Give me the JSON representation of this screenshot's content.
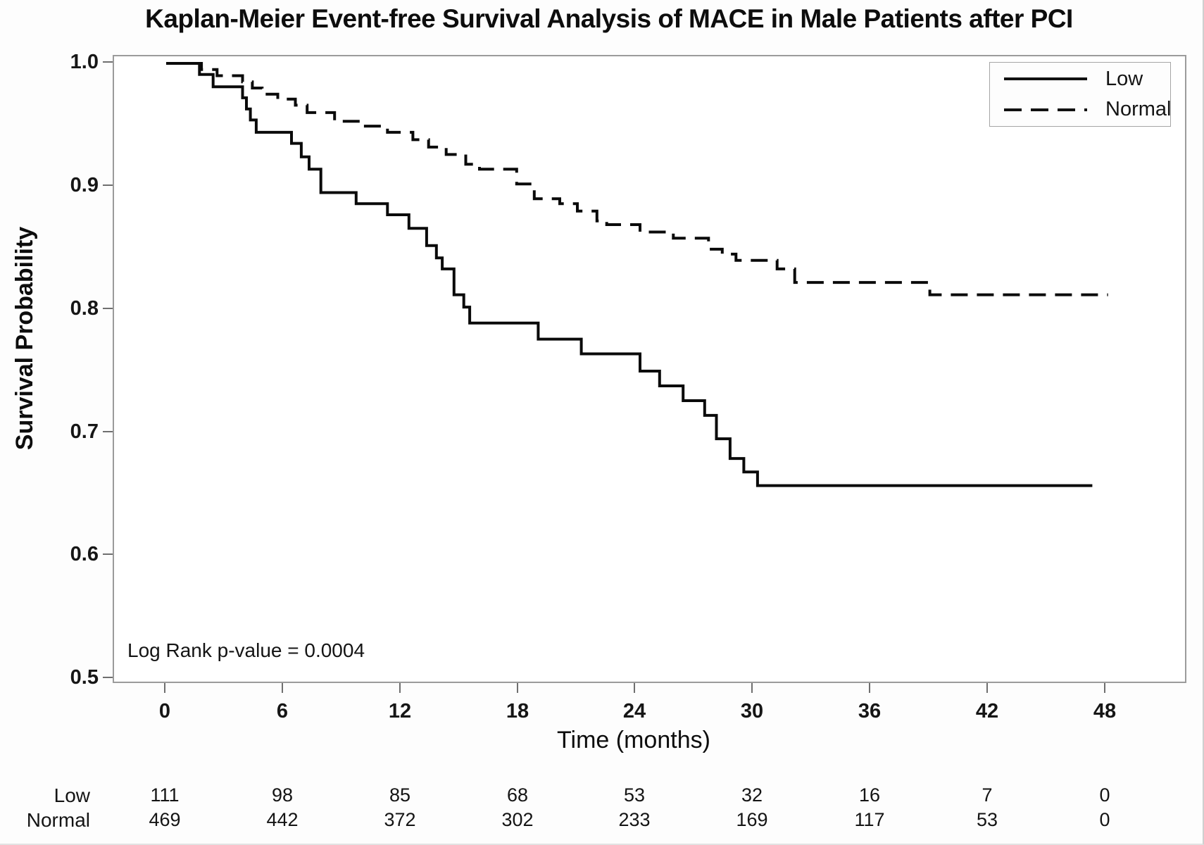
{
  "title": "Kaplan-Meier Event-free Survival Analysis of MACE in Male Patients after PCI",
  "axes": {
    "x": {
      "label": "Time (months)",
      "ticks": [
        "0",
        "6",
        "12",
        "18",
        "24",
        "30",
        "36",
        "42",
        "48"
      ]
    },
    "y": {
      "label": "Survival Probability",
      "ticks": [
        "1.0",
        "0.9",
        "0.8",
        "0.7",
        "0.6",
        "0.5"
      ]
    }
  },
  "annotation": {
    "text": "Log Rank p-value = 0.0004"
  },
  "legend": {
    "items": [
      {
        "label": "Low",
        "line": "solid"
      },
      {
        "label": "Normal",
        "line": "dashed"
      }
    ]
  },
  "chart_data": {
    "type": "line",
    "subtype": "step-survival",
    "title": "Kaplan-Meier Event-free Survival Analysis of MACE in Male Patients after PCI",
    "xlabel": "Time (months)",
    "ylabel": "Survival Probability",
    "xlim": [
      0,
      48
    ],
    "ylim": [
      0.5,
      1.0
    ],
    "x_ticks": [
      0,
      6,
      12,
      18,
      24,
      30,
      36,
      42,
      48
    ],
    "grid": false,
    "legend_position": "top-right",
    "line_color": "#0a0a0a",
    "annotation": "Log Rank p-value = 0.0004",
    "series": [
      {
        "name": "Low",
        "style": "solid",
        "end_month": 47.3,
        "steps": [
          [
            0,
            1.0
          ],
          [
            1.7,
            0.991
          ],
          [
            2.4,
            0.981
          ],
          [
            3.9,
            0.972
          ],
          [
            4.1,
            0.963
          ],
          [
            4.3,
            0.954
          ],
          [
            4.6,
            0.944
          ],
          [
            6.4,
            0.935
          ],
          [
            6.9,
            0.924
          ],
          [
            7.3,
            0.914
          ],
          [
            7.9,
            0.895
          ],
          [
            9.7,
            0.886
          ],
          [
            11.3,
            0.877
          ],
          [
            12.4,
            0.866
          ],
          [
            13.3,
            0.852
          ],
          [
            13.8,
            0.842
          ],
          [
            14.1,
            0.833
          ],
          [
            14.7,
            0.812
          ],
          [
            15.2,
            0.802
          ],
          [
            15.5,
            0.789
          ],
          [
            19.0,
            0.776
          ],
          [
            21.2,
            0.764
          ],
          [
            24.2,
            0.75
          ],
          [
            25.2,
            0.738
          ],
          [
            26.4,
            0.726
          ],
          [
            27.5,
            0.714
          ],
          [
            28.1,
            0.695
          ],
          [
            28.8,
            0.679
          ],
          [
            29.5,
            0.668
          ],
          [
            30.2,
            0.657
          ]
        ]
      },
      {
        "name": "Normal",
        "style": "dashed",
        "end_month": 48.1,
        "steps": [
          [
            0,
            1.0
          ],
          [
            1.8,
            0.995
          ],
          [
            2.6,
            0.99
          ],
          [
            3.9,
            0.985
          ],
          [
            4.4,
            0.98
          ],
          [
            4.9,
            0.975
          ],
          [
            5.7,
            0.971
          ],
          [
            6.6,
            0.966
          ],
          [
            7.2,
            0.96
          ],
          [
            8.6,
            0.953
          ],
          [
            10.0,
            0.949
          ],
          [
            11.3,
            0.944
          ],
          [
            12.6,
            0.938
          ],
          [
            13.4,
            0.932
          ],
          [
            14.3,
            0.926
          ],
          [
            15.3,
            0.918
          ],
          [
            16.0,
            0.914
          ],
          [
            17.9,
            0.902
          ],
          [
            18.8,
            0.89
          ],
          [
            20.1,
            0.886
          ],
          [
            21.0,
            0.88
          ],
          [
            22.0,
            0.872
          ],
          [
            22.5,
            0.869
          ],
          [
            24.2,
            0.863
          ],
          [
            25.9,
            0.858
          ],
          [
            27.7,
            0.849
          ],
          [
            28.4,
            0.845
          ],
          [
            29.1,
            0.84
          ],
          [
            31.2,
            0.833
          ],
          [
            32.1,
            0.822
          ],
          [
            39.0,
            0.812
          ]
        ]
      }
    ]
  },
  "risk_table": {
    "rows": [
      {
        "label": "Low",
        "counts": [
          111,
          98,
          85,
          68,
          53,
          32,
          16,
          7,
          0
        ]
      },
      {
        "label": "Normal",
        "counts": [
          469,
          442,
          372,
          302,
          233,
          169,
          117,
          53,
          0
        ]
      }
    ]
  }
}
